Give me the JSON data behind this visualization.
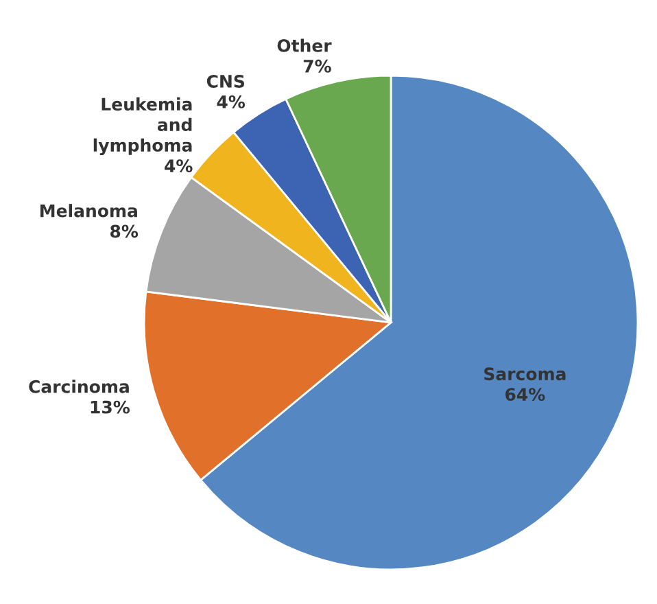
{
  "chart_data": {
    "type": "pie",
    "categories": [
      "Sarcoma",
      "Carcinoma",
      "Melanoma",
      "Leukemia and lymphoma",
      "CNS",
      "Other"
    ],
    "values": [
      64,
      13,
      8,
      4,
      4,
      7
    ],
    "colors": [
      "#5588c2",
      "#e0702a",
      "#a5a5a5",
      "#f0b41e",
      "#3d63b3",
      "#6aa84f"
    ],
    "value_labels": [
      "64%",
      "13%",
      "8%",
      "4%",
      "4%",
      "7%"
    ]
  }
}
